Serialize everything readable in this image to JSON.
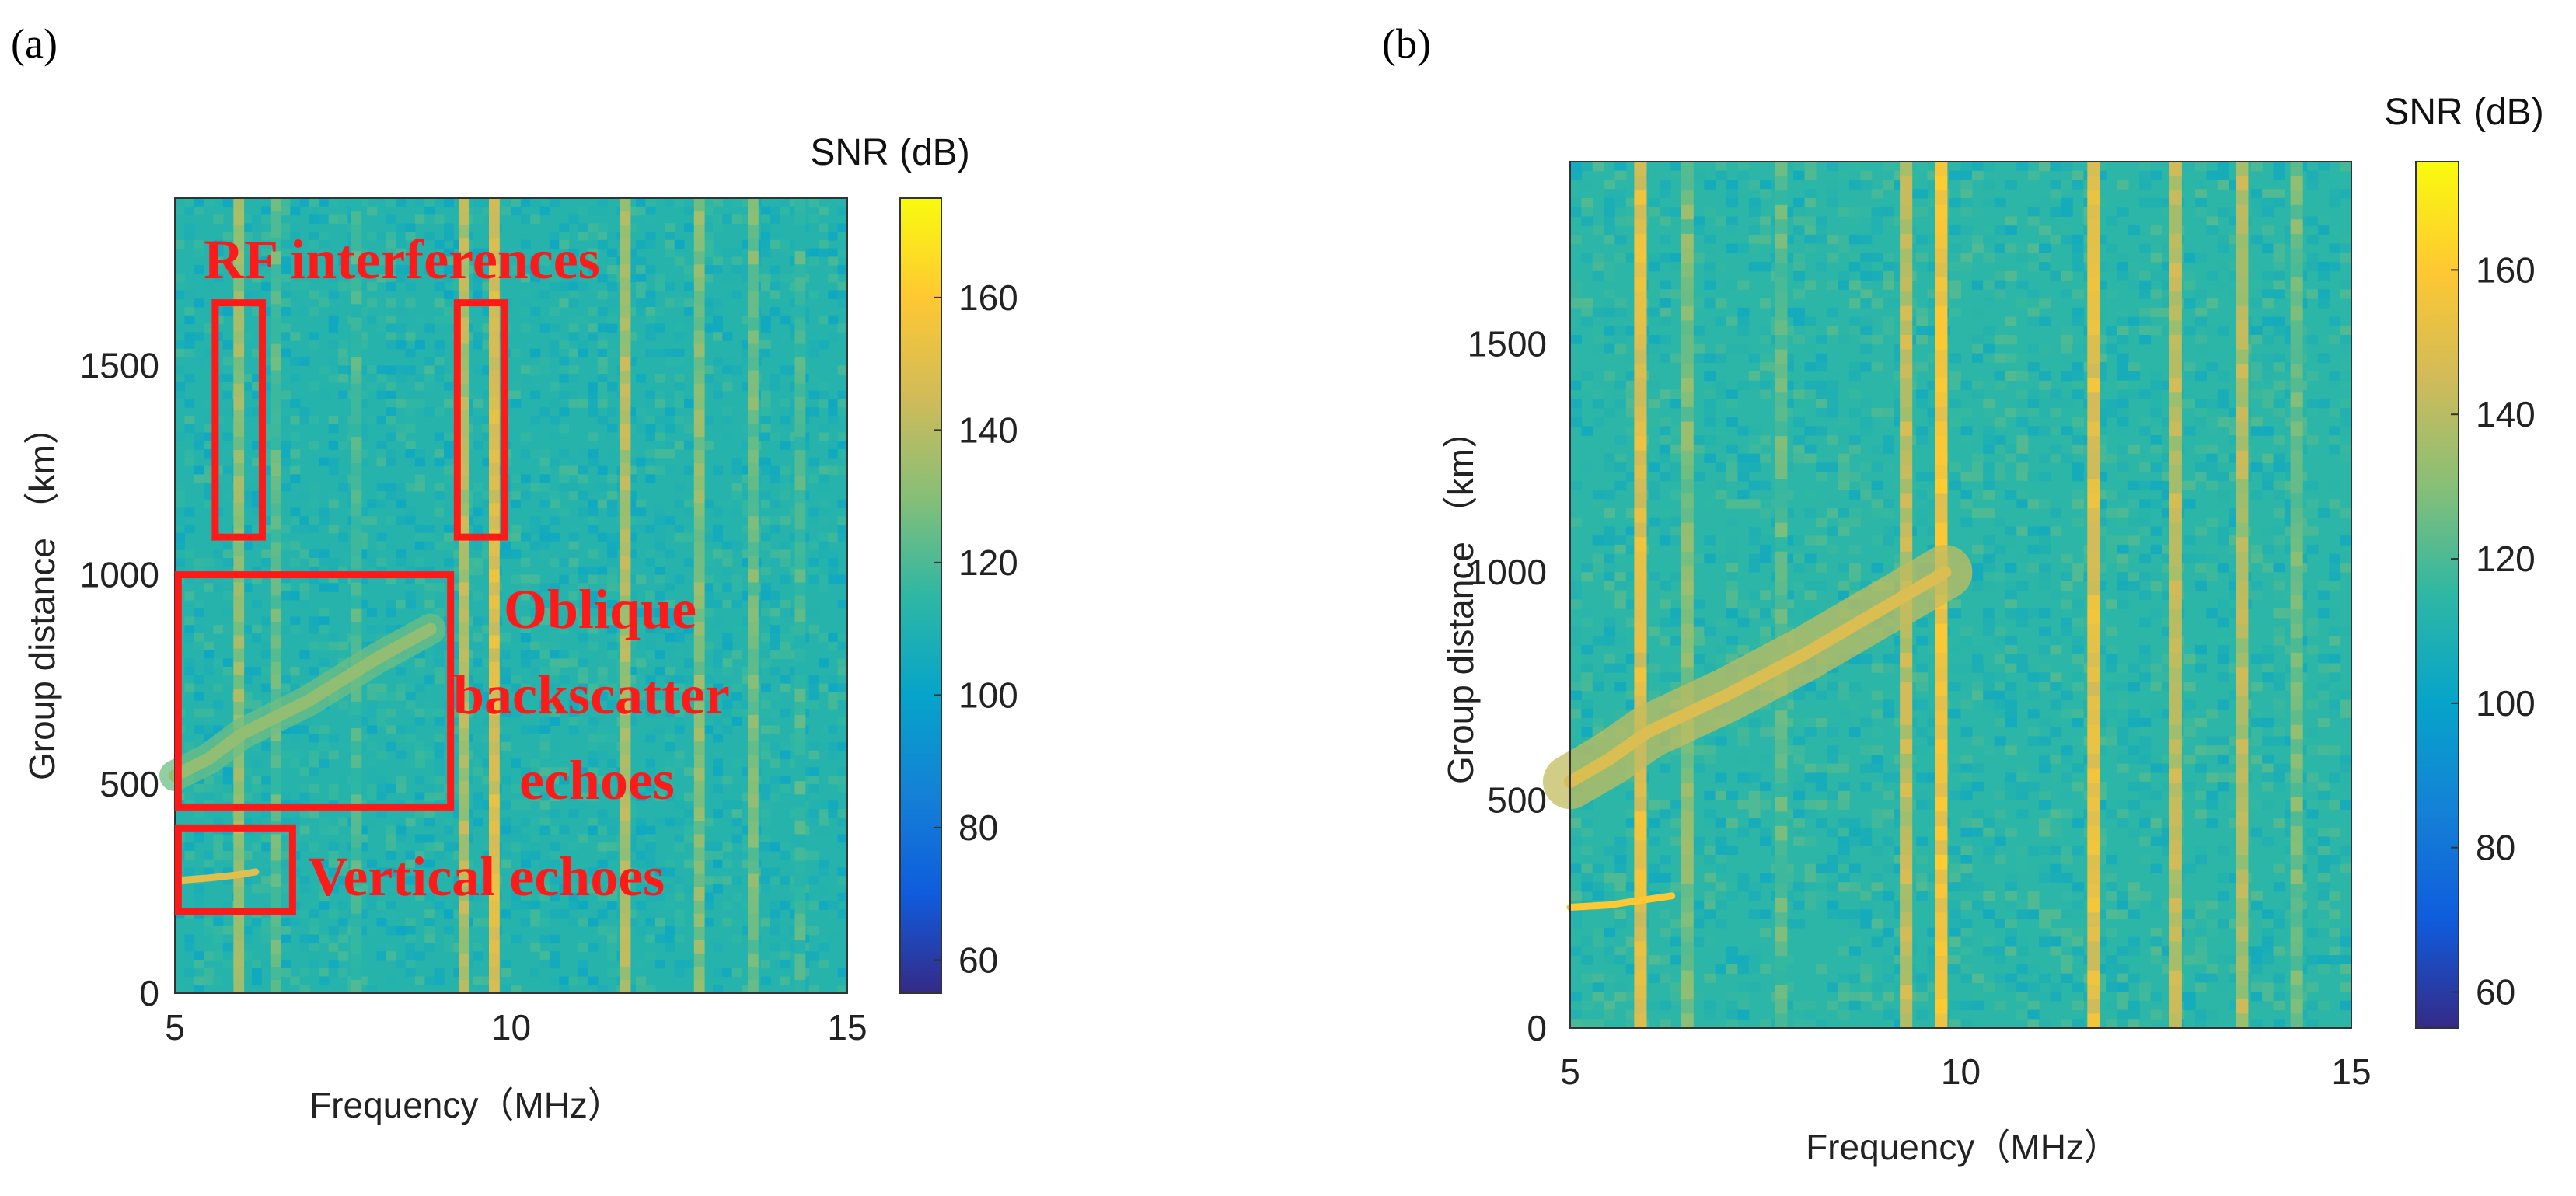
{
  "chart_data": [
    {
      "type": "heatmap",
      "panel_label": "(a)",
      "xlabel": "Frequency（MHz）",
      "ylabel": "Group distance （km）",
      "xlim": [
        5,
        15
      ],
      "ylim": [
        0,
        1900
      ],
      "xticks": [
        5,
        10,
        15
      ],
      "yticks": [
        0,
        500,
        1000,
        1500
      ],
      "colorbar": {
        "title": "SNR (dB)",
        "range": [
          55,
          175
        ],
        "ticks": [
          60,
          80,
          100,
          120,
          140,
          160
        ]
      },
      "colormap": "parula",
      "background_snr": 112,
      "interference_bands": [
        {
          "f": 5.95,
          "snr": 132
        },
        {
          "f": 6.5,
          "snr": 122
        },
        {
          "f": 7.7,
          "snr": 118
        },
        {
          "f": 9.3,
          "snr": 138
        },
        {
          "f": 9.75,
          "snr": 148
        },
        {
          "f": 11.7,
          "snr": 138
        },
        {
          "f": 12.8,
          "snr": 130
        },
        {
          "f": 13.6,
          "snr": 126
        },
        {
          "f": 14.3,
          "snr": 118
        }
      ],
      "echo_traces": [
        {
          "name": "vertical",
          "points": [
            [
              5.1,
              270
            ],
            [
              5.5,
              275
            ],
            [
              5.9,
              282
            ],
            [
              6.2,
              290
            ]
          ],
          "snr": 150
        },
        {
          "name": "oblique",
          "points": [
            [
              5.0,
              520
            ],
            [
              5.5,
              560
            ],
            [
              6.0,
              620
            ],
            [
              7.0,
              700
            ],
            [
              8.0,
              800
            ],
            [
              8.8,
              870
            ]
          ],
          "snr": 132
        }
      ],
      "annotations": [
        {
          "text": "RF interferences"
        },
        {
          "text": "Oblique"
        },
        {
          "text": "backscatter"
        },
        {
          "text": "echoes"
        },
        {
          "text": "Vertical echoes"
        }
      ],
      "boxes": [
        {
          "x": [
            5.6,
            6.3
          ],
          "y": [
            1090,
            1650
          ]
        },
        {
          "x": [
            9.2,
            9.9
          ],
          "y": [
            1090,
            1650
          ]
        },
        {
          "x": [
            5.05,
            9.1
          ],
          "y": [
            445,
            1000
          ]
        },
        {
          "x": [
            5.05,
            6.75
          ],
          "y": [
            195,
            395
          ]
        }
      ]
    },
    {
      "type": "heatmap",
      "panel_label": "(b)",
      "xlabel": "Frequency（MHz）",
      "ylabel": "Group distance （km）",
      "xlim": [
        5,
        15
      ],
      "ylim": [
        0,
        1900
      ],
      "xticks": [
        5,
        10,
        15
      ],
      "yticks": [
        0,
        500,
        1000,
        1500
      ],
      "colorbar": {
        "title": "SNR (dB)",
        "range": [
          55,
          175
        ],
        "ticks": [
          60,
          80,
          100,
          120,
          140,
          160
        ]
      },
      "colormap": "parula",
      "background_snr": 114,
      "interference_bands": [
        {
          "f": 5.9,
          "snr": 150
        },
        {
          "f": 6.5,
          "snr": 128
        },
        {
          "f": 7.7,
          "snr": 122
        },
        {
          "f": 9.3,
          "snr": 142
        },
        {
          "f": 9.75,
          "snr": 155
        },
        {
          "f": 11.7,
          "snr": 150
        },
        {
          "f": 12.75,
          "snr": 140
        },
        {
          "f": 13.6,
          "snr": 138
        },
        {
          "f": 14.3,
          "snr": 126
        }
      ],
      "echo_traces": [
        {
          "name": "vertical",
          "points": [
            [
              5.0,
              265
            ],
            [
              5.5,
              270
            ],
            [
              5.9,
              280
            ],
            [
              6.3,
              290
            ]
          ],
          "snr": 160
        },
        {
          "name": "oblique",
          "points": [
            [
              5.0,
              540
            ],
            [
              5.5,
              590
            ],
            [
              6.0,
              650
            ],
            [
              7.0,
              730
            ],
            [
              8.0,
              820
            ],
            [
              9.0,
              920
            ],
            [
              9.8,
              1000
            ]
          ],
          "snr": 148
        }
      ]
    }
  ]
}
